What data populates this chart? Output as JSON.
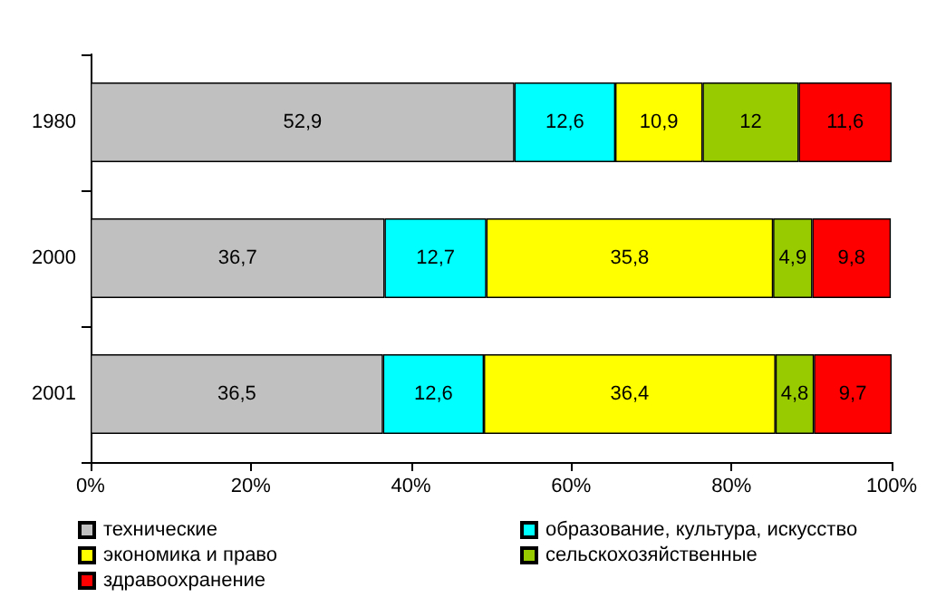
{
  "chart_data": {
    "type": "bar",
    "orientation": "horizontal",
    "stacked": true,
    "categories": [
      "1980",
      "2000",
      "2001"
    ],
    "xlim": [
      0,
      100
    ],
    "xticks": [
      {
        "value": 0,
        "label": "0%"
      },
      {
        "value": 20,
        "label": "20%"
      },
      {
        "value": 40,
        "label": "40%"
      },
      {
        "value": 60,
        "label": "60%"
      },
      {
        "value": 80,
        "label": "80%"
      },
      {
        "value": 100,
        "label": "100%"
      }
    ],
    "grid": false,
    "legend": "bottom",
    "series": [
      {
        "name": "технические",
        "color": "#c0c0c0",
        "values": [
          52.9,
          36.7,
          36.5
        ],
        "value_labels": [
          "52,9",
          "36,7",
          "36,5"
        ]
      },
      {
        "name": "образование, культура, искусство",
        "color": "#00ffff",
        "values": [
          12.6,
          12.7,
          12.6
        ],
        "value_labels": [
          "12,6",
          "12,7",
          "12,6"
        ]
      },
      {
        "name": "экономика и право",
        "color": "#ffff00",
        "values": [
          10.9,
          35.8,
          36.4
        ],
        "value_labels": [
          "10,9",
          "35,8",
          "36,4"
        ]
      },
      {
        "name": "сельскохозяйственные",
        "color": "#99cc00",
        "values": [
          12,
          4.9,
          4.8
        ],
        "value_labels": [
          "12",
          "4,9",
          "4,8"
        ]
      },
      {
        "name": "здравоохранение",
        "color": "#ff0000",
        "values": [
          11.6,
          9.8,
          9.7
        ],
        "value_labels": [
          "11,6",
          "9,8",
          "9,7"
        ]
      }
    ]
  }
}
